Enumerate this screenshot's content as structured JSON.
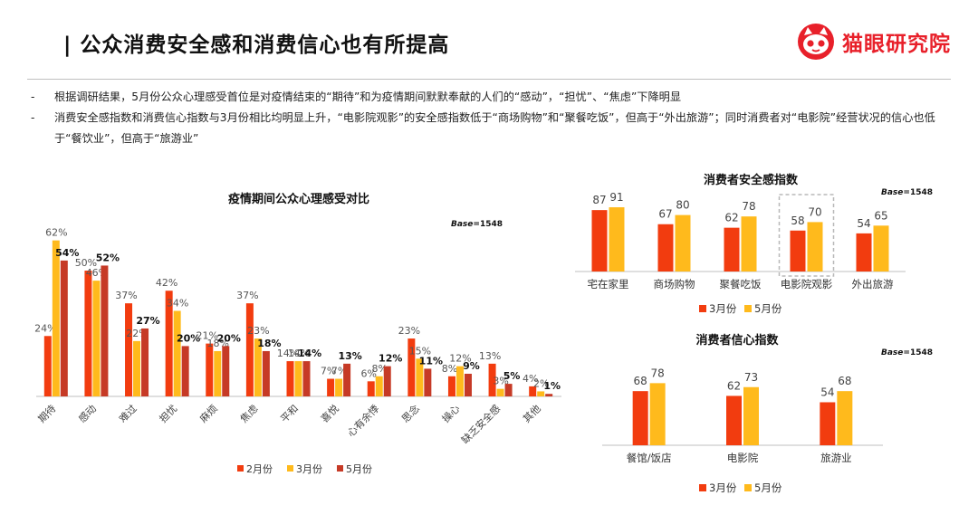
{
  "header": {
    "title": "公众消费安全感和消费信心也有所提高",
    "brand": "猫眼研究院"
  },
  "bullets": [
    "根据调研结果，5月份公众心理感受首位是对疫情结束的“期待”和为疫情期间默默奉献的人们的“感动”，“担忧”、“焦虑”下降明显",
    "消费安全感指数和消费信心指数与3月份相比均明显上升，“电影院观影”的安全感指数低于“商场购物”和“聚餐吃饭”，但高于“外出旅游”；同时消费者对“电影院”经营状况的信心也低于“餐饮业”，但高于“旅游业”"
  ],
  "bullet_dash": "-",
  "colors": {
    "feb": "#f23c0f",
    "mar": "#ffba1c",
    "may": "#c63a26",
    "may_right": "#ffba1c",
    "mar_right": "#f23c0f",
    "title_bar": "#1a1a1a",
    "brand": "#e8202a"
  },
  "chart_data": [
    {
      "type": "bar",
      "title": "疫情期间公众心理感受对比",
      "base_label": "Base",
      "base_value": "=1548",
      "categories": [
        "期待",
        "感动",
        "难过",
        "担忧",
        "麻烦",
        "焦虑",
        "平和",
        "喜悦",
        "心有余悸",
        "思念",
        "操心",
        "缺乏安全感",
        "其他"
      ],
      "series": [
        {
          "name": "2月份",
          "values": [
            24,
            50,
            37,
            42,
            21,
            37,
            14,
            7,
            6,
            23,
            8,
            13,
            4
          ]
        },
        {
          "name": "3月份",
          "values": [
            62,
            46,
            22,
            34,
            18,
            23,
            14,
            7,
            8,
            15,
            12,
            3,
            2
          ]
        },
        {
          "name": "5月份",
          "values": [
            54,
            52,
            27,
            20,
            20,
            18,
            14,
            13,
            12,
            11,
            9,
            5,
            1
          ]
        }
      ],
      "ylim": [
        0,
        70
      ],
      "value_suffix": "%"
    },
    {
      "type": "bar",
      "title": "消费者安全感指数",
      "base_label": "Base",
      "base_value": "=1548",
      "categories": [
        "宅在家里",
        "商场购物",
        "聚餐吃饭",
        "电影院观影",
        "外出旅游"
      ],
      "series": [
        {
          "name": "3月份",
          "values": [
            87,
            67,
            62,
            58,
            54
          ]
        },
        {
          "name": "5月份",
          "values": [
            91,
            80,
            78,
            70,
            65
          ]
        }
      ],
      "ylim": [
        0,
        100
      ],
      "highlight": "电影院观影"
    },
    {
      "type": "bar",
      "title": "消费者信心指数",
      "base_label": "Base",
      "base_value": "=1548",
      "categories": [
        "餐馆/饭店",
        "电影院",
        "旅游业"
      ],
      "series": [
        {
          "name": "3月份",
          "values": [
            68,
            62,
            54
          ]
        },
        {
          "name": "5月份",
          "values": [
            78,
            73,
            68
          ]
        }
      ],
      "ylim": [
        0,
        100
      ]
    }
  ]
}
